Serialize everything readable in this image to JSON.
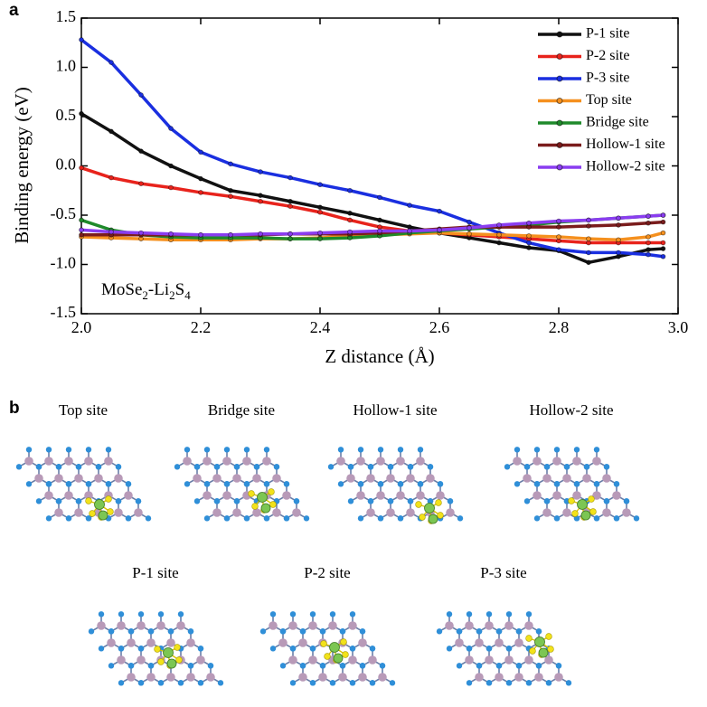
{
  "chart_data": {
    "type": "line",
    "panel_label": "a",
    "x_label": "Z distance (Å)",
    "y_label": "Binding energy (eV)",
    "annotation": "MoSe2-Li2S4",
    "x": [
      2.0,
      2.05,
      2.1,
      2.15,
      2.2,
      2.25,
      2.3,
      2.35,
      2.4,
      2.45,
      2.5,
      2.55,
      2.6,
      2.65,
      2.7,
      2.75,
      2.8,
      2.85,
      2.9,
      2.95,
      2.975
    ],
    "series": [
      {
        "name": "P-1 site",
        "color": "#111111",
        "values": [
          0.53,
          0.35,
          0.15,
          0.0,
          -0.13,
          -0.25,
          -0.3,
          -0.36,
          -0.42,
          -0.48,
          -0.55,
          -0.62,
          -0.68,
          -0.73,
          -0.78,
          -0.83,
          -0.86,
          -0.98,
          -0.92,
          -0.85,
          -0.84
        ]
      },
      {
        "name": "P-2 site",
        "color": "#e8231c",
        "values": [
          -0.02,
          -0.12,
          -0.18,
          -0.22,
          -0.27,
          -0.31,
          -0.36,
          -0.41,
          -0.47,
          -0.55,
          -0.62,
          -0.66,
          -0.68,
          -0.7,
          -0.72,
          -0.74,
          -0.76,
          -0.78,
          -0.78,
          -0.78,
          -0.78
        ]
      },
      {
        "name": "P-3 site",
        "color": "#1a2fe0",
        "values": [
          1.28,
          1.05,
          0.72,
          0.38,
          0.14,
          0.02,
          -0.06,
          -0.12,
          -0.19,
          -0.25,
          -0.32,
          -0.4,
          -0.46,
          -0.57,
          -0.68,
          -0.78,
          -0.85,
          -0.88,
          -0.88,
          -0.9,
          -0.92
        ]
      },
      {
        "name": "Top site",
        "color": "#f5901e",
        "values": [
          -0.72,
          -0.73,
          -0.74,
          -0.75,
          -0.75,
          -0.75,
          -0.74,
          -0.74,
          -0.73,
          -0.71,
          -0.7,
          -0.69,
          -0.68,
          -0.69,
          -0.7,
          -0.71,
          -0.72,
          -0.74,
          -0.75,
          -0.72,
          -0.68
        ]
      },
      {
        "name": "Bridge site",
        "color": "#1f8a2a",
        "values": [
          -0.55,
          -0.65,
          -0.7,
          -0.72,
          -0.73,
          -0.73,
          -0.73,
          -0.74,
          -0.74,
          -0.73,
          -0.71,
          -0.68,
          -0.66,
          -0.64,
          -0.62,
          -0.6,
          -0.57,
          -0.55,
          -0.53,
          -0.51,
          -0.5
        ]
      },
      {
        "name": "Hollow-1 site",
        "color": "#7a1c1c",
        "values": [
          -0.7,
          -0.7,
          -0.7,
          -0.7,
          -0.7,
          -0.7,
          -0.7,
          -0.69,
          -0.69,
          -0.69,
          -0.68,
          -0.66,
          -0.64,
          -0.62,
          -0.62,
          -0.62,
          -0.62,
          -0.61,
          -0.6,
          -0.58,
          -0.57
        ]
      },
      {
        "name": "Hollow-2 site",
        "color": "#8a3df0",
        "values": [
          -0.65,
          -0.67,
          -0.68,
          -0.69,
          -0.7,
          -0.7,
          -0.69,
          -0.69,
          -0.68,
          -0.67,
          -0.66,
          -0.66,
          -0.65,
          -0.63,
          -0.6,
          -0.58,
          -0.56,
          -0.55,
          -0.53,
          -0.51,
          -0.5
        ]
      }
    ],
    "xlim": [
      2.0,
      3.0
    ],
    "xticks": [
      {
        "value": 2.0,
        "label": "2.0"
      },
      2.2,
      2.4,
      2.6,
      2.8,
      {
        "value": 3.0,
        "label": "3.0"
      }
    ],
    "ylim": [
      -1.5,
      1.5
    ],
    "yticks": [
      {
        "value": -1.5,
        "label": "-1.5"
      },
      {
        "value": -1.0,
        "label": "-1.0"
      },
      {
        "value": -0.5,
        "label": "-0.5"
      },
      {
        "value": 0.0,
        "label": "0.0"
      },
      {
        "value": 0.5,
        "label": "0.5"
      },
      {
        "value": 1.0,
        "label": "1.0"
      },
      {
        "value": 1.5,
        "label": "1.5"
      }
    ],
    "legend": "upper right",
    "grid": false
  },
  "panel_b": {
    "label": "b",
    "structures": [
      "Top site",
      "Bridge site",
      "Hollow-1 site",
      "Hollow-2 site",
      "P-1 site",
      "P-2 site",
      "P-3 site"
    ]
  }
}
